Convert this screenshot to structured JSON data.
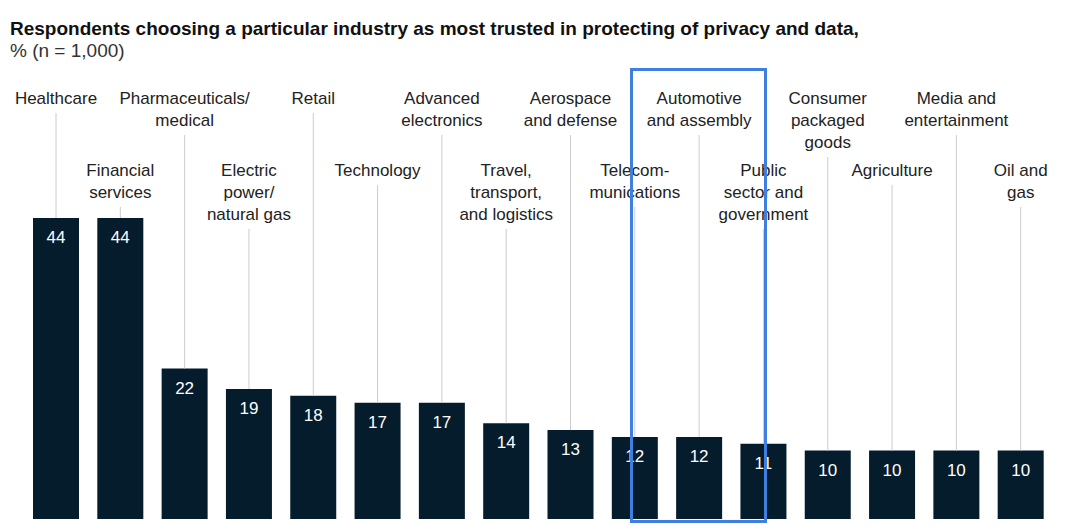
{
  "chart_data": {
    "type": "bar",
    "title": "Respondents choosing a particular industry as most trusted in protecting of privacy and data,",
    "subtitle": "% (n = 1,000)",
    "categories": [
      "Healthcare",
      "Financial\nservices",
      "Pharmaceuticals/\nmedical",
      "Electric\npower/\nnatural gas",
      "Retail",
      "Technology",
      "Advanced\nelectronics",
      "Travel,\ntransport,\nand logistics",
      "Aerospace\nand defense",
      "Telecom-\nmunications",
      "Automotive\nand assembly",
      "Public\nsector and\ngovernment",
      "Consumer\npackaged\ngoods",
      "Agriculture",
      "Media and\nentertainment",
      "Oil and\ngas"
    ],
    "values": [
      44,
      44,
      22,
      19,
      18,
      17,
      17,
      14,
      13,
      12,
      12,
      11,
      10,
      10,
      10,
      10
    ],
    "color": "#051c2c",
    "ylim": [
      0,
      44
    ],
    "data_labels": true,
    "tick_labels": "x",
    "grid": false
  }
}
